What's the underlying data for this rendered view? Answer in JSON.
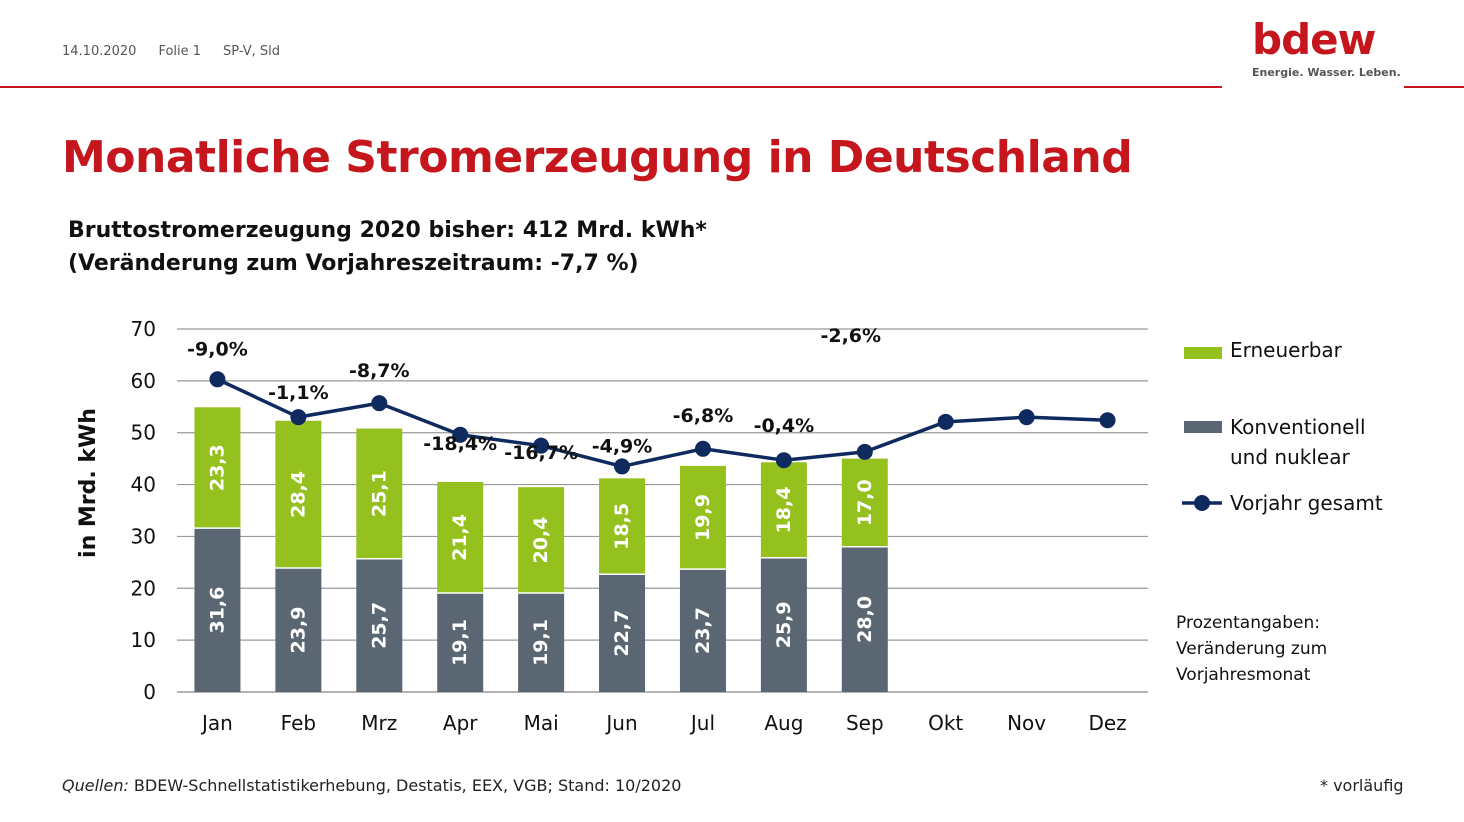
{
  "header": {
    "date": "14.10.2020",
    "slide": "Folie 1",
    "author": "SP-V, Sld"
  },
  "logo": {
    "word": "bdew",
    "tagline": "Energie. Wasser. Leben."
  },
  "title": "Monatliche Stromerzeugung in Deutschland",
  "subtitle": {
    "line1": "Bruttostromerzeugung 2020 bisher: 412 Mrd. kWh*",
    "line2": "(Veränderung zum Vorjahreszeitraum: -7,7 %)"
  },
  "legend": {
    "renewable": "Erneuerbar",
    "conventional_line1": "Konventionell",
    "conventional_line2": "und nuklear",
    "prev_year": "Vorjahr gesamt"
  },
  "note": {
    "line1": "Prozentangaben:",
    "line2": "Veränderung zum",
    "line3": "Vorjahresmonat"
  },
  "footer": {
    "source_label": "Quellen:",
    "source_text": " BDEW-Schnellstatistikerhebung, Destatis, EEX, VGB; Stand: 10/2020",
    "footnote": "* vorläufig"
  },
  "colors": {
    "accent": "#c4161c",
    "renewable": "#95c11f",
    "conventional": "#5a6672",
    "line": "#0f2a5e",
    "grid": "#9a9a9a"
  },
  "chart_data": {
    "type": "bar",
    "stacked": true,
    "ylabel": "in Mrd. kWh",
    "ylim": [
      0,
      70
    ],
    "yticks": [
      0,
      10,
      20,
      30,
      40,
      50,
      60,
      70
    ],
    "grid": true,
    "legend_position": "right",
    "categories": [
      "Jan",
      "Feb",
      "Mrz",
      "Apr",
      "Mai",
      "Jun",
      "Jul",
      "Aug",
      "Sep",
      "Okt",
      "Nov",
      "Dez"
    ],
    "series": [
      {
        "name": "Konventionell und nuklear",
        "kind": "bar",
        "values": [
          31.6,
          23.9,
          25.7,
          19.1,
          19.1,
          22.7,
          23.7,
          25.9,
          28.0,
          null,
          null,
          null
        ],
        "labels": [
          "31,6",
          "23,9",
          "25,7",
          "19,1",
          "19,1",
          "22,7",
          "23,7",
          "25,9",
          "28,0",
          null,
          null,
          null
        ]
      },
      {
        "name": "Erneuerbar",
        "kind": "bar",
        "values": [
          23.3,
          28.4,
          25.1,
          21.4,
          20.4,
          18.5,
          19.9,
          18.4,
          17.0,
          null,
          null,
          null
        ],
        "labels": [
          "23,3",
          "28,4",
          "25,1",
          "21,4",
          "20,4",
          "18,5",
          "19,9",
          "18,4",
          "17,0",
          null,
          null,
          null
        ]
      },
      {
        "name": "Vorjahr gesamt",
        "kind": "line",
        "values": [
          60.3,
          53.0,
          55.7,
          49.6,
          47.5,
          43.5,
          46.9,
          44.7,
          46.3,
          52.1,
          53.0,
          52.4
        ]
      }
    ],
    "annotations": [
      "-9,0%",
      "-1,1%",
      "-8,7%",
      "-18,4%",
      "-16,7%",
      "-4,9%",
      "-6,8%",
      "-0,4%",
      "-2,6%"
    ]
  }
}
